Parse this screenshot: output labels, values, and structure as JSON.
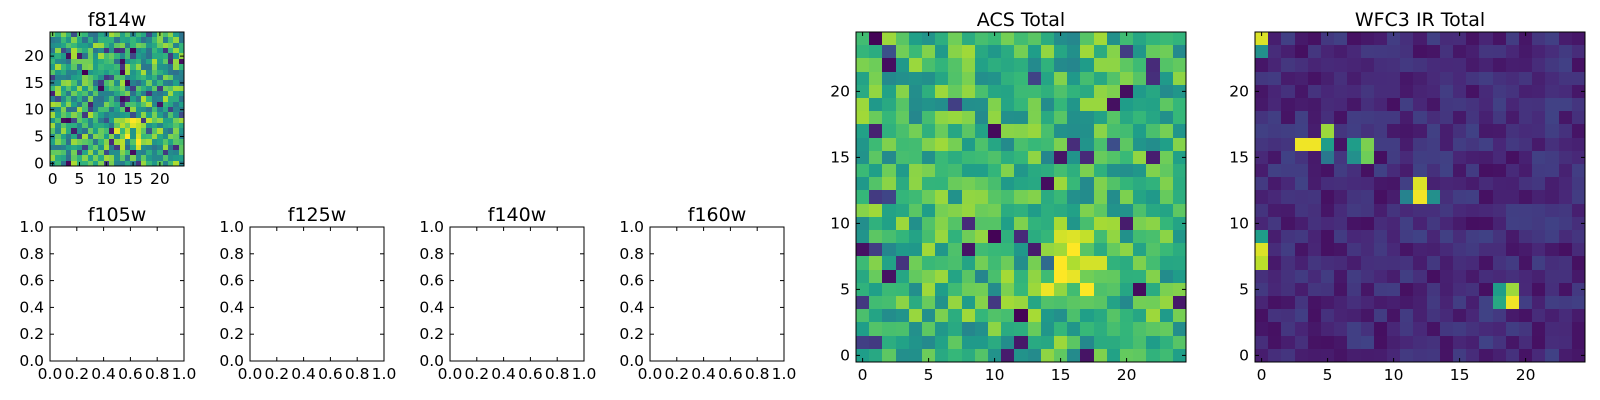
{
  "chart_data": [
    {
      "id": "f814w",
      "type": "heatmap",
      "title": "f814w",
      "grid_size": 25,
      "colormap": "viridis",
      "xticks": [
        0,
        5,
        10,
        15,
        20
      ],
      "yticks": [
        0,
        5,
        10,
        15,
        20
      ],
      "xlim": [
        -0.5,
        24.5
      ],
      "ylim": [
        -0.5,
        24.5
      ],
      "bright_blob": {
        "x": 15,
        "y": 6
      },
      "seed": 7,
      "base": 0.62,
      "noise": 0.26,
      "dark_fraction": 0.1,
      "blobs": [
        {
          "x": 15,
          "y": 6,
          "sigma": 1.8,
          "amp": 0.45
        }
      ]
    },
    {
      "id": "f105w",
      "type": "empty",
      "title": "f105w",
      "xlim": [
        0,
        1
      ],
      "ylim": [
        0,
        1
      ],
      "xticks": [
        "0.0",
        "0.2",
        "0.4",
        "0.6",
        "0.8",
        "1.0"
      ],
      "yticks": [
        "0.0",
        "0.2",
        "0.4",
        "0.6",
        "0.8",
        "1.0"
      ]
    },
    {
      "id": "f125w",
      "type": "empty",
      "title": "f125w",
      "xlim": [
        0,
        1
      ],
      "ylim": [
        0,
        1
      ],
      "xticks": [
        "0.0",
        "0.2",
        "0.4",
        "0.6",
        "0.8",
        "1.0"
      ],
      "yticks": [
        "0.0",
        "0.2",
        "0.4",
        "0.6",
        "0.8",
        "1.0"
      ]
    },
    {
      "id": "f140w",
      "type": "empty",
      "title": "f140w",
      "xlim": [
        0,
        1
      ],
      "ylim": [
        0,
        1
      ],
      "xticks": [
        "0.0",
        "0.2",
        "0.4",
        "0.6",
        "0.8",
        "1.0"
      ],
      "yticks": [
        "0.0",
        "0.2",
        "0.4",
        "0.6",
        "0.8",
        "1.0"
      ]
    },
    {
      "id": "f160w",
      "type": "empty",
      "title": "f160w",
      "xlim": [
        0,
        1
      ],
      "ylim": [
        0,
        1
      ],
      "xticks": [
        "0.0",
        "0.2",
        "0.4",
        "0.6",
        "0.8",
        "1.0"
      ],
      "yticks": [
        "0.0",
        "0.2",
        "0.4",
        "0.6",
        "0.8",
        "1.0"
      ]
    },
    {
      "id": "acs-total",
      "type": "heatmap",
      "title": "ACS Total",
      "grid_size": 25,
      "colormap": "viridis",
      "xticks": [
        0,
        5,
        10,
        15,
        20
      ],
      "yticks": [
        0,
        5,
        10,
        15,
        20
      ],
      "xlim": [
        -0.5,
        24.5
      ],
      "ylim": [
        -0.5,
        24.5
      ],
      "bright_blob": {
        "x": 15.5,
        "y": 6.5
      },
      "seed": 11,
      "base": 0.66,
      "noise": 0.2,
      "dark_fraction": 0.06,
      "blobs": [
        {
          "x": 15.5,
          "y": 6.5,
          "sigma": 1.6,
          "amp": 0.35
        }
      ]
    },
    {
      "id": "wfc3-ir-total",
      "type": "heatmap",
      "title": "WFC3 IR Total",
      "grid_size": 25,
      "colormap": "viridis",
      "xticks": [
        0,
        5,
        10,
        15,
        20
      ],
      "yticks": [
        0,
        5,
        10,
        15,
        20
      ],
      "xlim": [
        -0.5,
        24.5
      ],
      "ylim": [
        -0.5,
        24.5
      ],
      "seed": 23,
      "base": 0.12,
      "noise": 0.08,
      "dark_fraction": 0.0,
      "bright_pixels": [
        {
          "x": 0,
          "y": 24,
          "v": 0.95
        },
        {
          "x": 0,
          "y": 23,
          "v": 0.5
        },
        {
          "x": 3,
          "y": 16,
          "v": 0.98
        },
        {
          "x": 4,
          "y": 16,
          "v": 0.98
        },
        {
          "x": 5,
          "y": 17,
          "v": 0.85
        },
        {
          "x": 5,
          "y": 16,
          "v": 0.55
        },
        {
          "x": 5,
          "y": 15,
          "v": 0.4
        },
        {
          "x": 7,
          "y": 16,
          "v": 0.55
        },
        {
          "x": 7,
          "y": 15,
          "v": 0.5
        },
        {
          "x": 8,
          "y": 16,
          "v": 0.8
        },
        {
          "x": 8,
          "y": 15,
          "v": 0.78
        },
        {
          "x": 12,
          "y": 13,
          "v": 0.95
        },
        {
          "x": 12,
          "y": 12,
          "v": 0.98
        },
        {
          "x": 11,
          "y": 12,
          "v": 0.45
        },
        {
          "x": 13,
          "y": 12,
          "v": 0.5
        },
        {
          "x": 0,
          "y": 9,
          "v": 0.55
        },
        {
          "x": 0,
          "y": 8,
          "v": 0.95
        },
        {
          "x": 0,
          "y": 7,
          "v": 0.9
        },
        {
          "x": 18,
          "y": 5,
          "v": 0.55
        },
        {
          "x": 19,
          "y": 5,
          "v": 0.85
        },
        {
          "x": 18,
          "y": 4,
          "v": 0.6
        },
        {
          "x": 19,
          "y": 4,
          "v": 0.98
        }
      ]
    }
  ]
}
